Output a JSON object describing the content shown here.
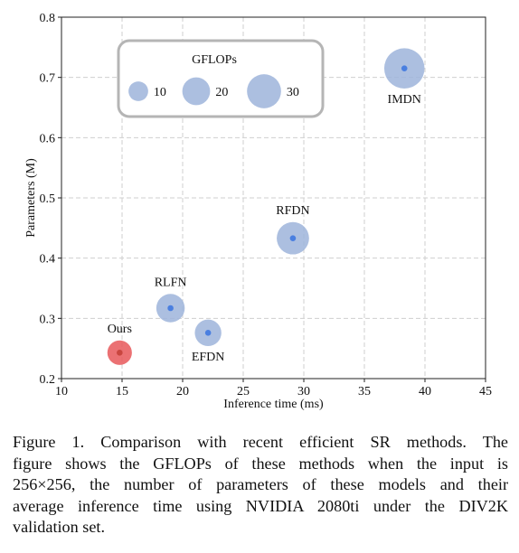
{
  "chart_data": {
    "type": "scatter",
    "xlabel": "Inference time (ms)",
    "ylabel": "Parameters (M)",
    "xlim": [
      10,
      45
    ],
    "ylim": [
      0.2,
      0.8
    ],
    "xticks": [
      "10",
      "15",
      "20",
      "25",
      "30",
      "35",
      "40",
      "45"
    ],
    "yticks": [
      "0.2",
      "0.3",
      "0.4",
      "0.5",
      "0.6",
      "0.7",
      "0.8"
    ],
    "grid": true,
    "size_encoding": "GFLOPs",
    "points": [
      {
        "label": "Ours",
        "x": 14.8,
        "y": 0.243,
        "gflops": 11.5,
        "color": "#e8585b",
        "dot_color": "#c9463f",
        "label_pos": "above"
      },
      {
        "label": "RLFN",
        "x": 19.0,
        "y": 0.317,
        "gflops": 15.5,
        "color": "#9db4da",
        "dot_color": "#4a7fe0",
        "label_pos": "above"
      },
      {
        "label": "EFDN",
        "x": 22.1,
        "y": 0.276,
        "gflops": 13.5,
        "color": "#9db4da",
        "dot_color": "#4a7fe0",
        "label_pos": "below"
      },
      {
        "label": "RFDN",
        "x": 29.1,
        "y": 0.433,
        "gflops": 20.0,
        "color": "#9db4da",
        "dot_color": "#4a7fe0",
        "label_pos": "above"
      },
      {
        "label": "IMDN",
        "x": 38.3,
        "y": 0.715,
        "gflops": 31.0,
        "color": "#9db4da",
        "dot_color": "#4a7fe0",
        "label_pos": "below"
      }
    ],
    "legend": {
      "title": "GFLOPs",
      "placement": "top-left",
      "entries": [
        {
          "label": "10",
          "gflops": 10
        },
        {
          "label": "20",
          "gflops": 20
        },
        {
          "label": "30",
          "gflops": 30
        }
      ]
    }
  },
  "caption": {
    "lines": [
      "Figure 1.  Comparison with recent efficient SR methods.  The",
      "figure shows the GFLOPs of these methods when the input is",
      "256×256, the number of parameters of these models and their",
      "average inference time using NVIDIA 2080ti under the DIV2K",
      "validation set."
    ]
  }
}
